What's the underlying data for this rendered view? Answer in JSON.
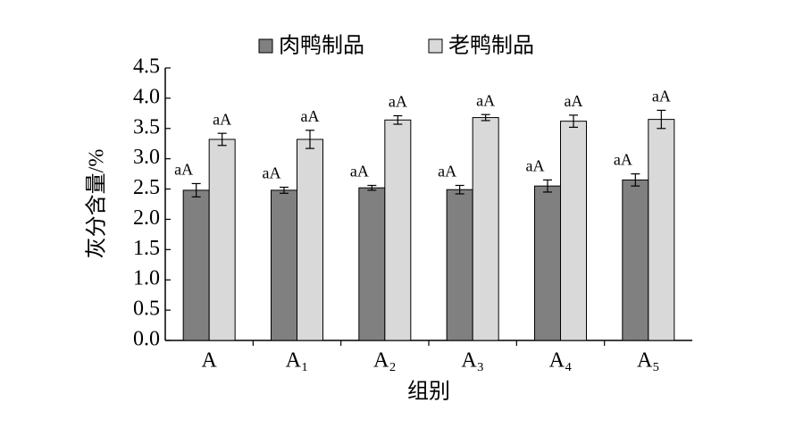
{
  "chart_data": {
    "type": "bar",
    "ylabel": "灰分含量/%",
    "xlabel": "组别",
    "categories": [
      "A",
      "A₁",
      "A₂",
      "A₃",
      "A₄",
      "A₅"
    ],
    "series": [
      {
        "name": "肉鸭制品",
        "color": "#808080",
        "values": [
          2.48,
          2.48,
          2.52,
          2.49,
          2.55,
          2.65
        ],
        "errors": [
          0.11,
          0.05,
          0.04,
          0.07,
          0.1,
          0.1
        ],
        "labels": [
          "aA",
          "aA",
          "aA",
          "aA",
          "aA",
          "aA"
        ]
      },
      {
        "name": "老鸭制品",
        "color": "#d9d9d9",
        "values": [
          3.32,
          3.32,
          3.64,
          3.68,
          3.62,
          3.65
        ],
        "errors": [
          0.1,
          0.15,
          0.07,
          0.05,
          0.1,
          0.15
        ],
        "labels": [
          "aA",
          "aA",
          "aA",
          "aA",
          "aA",
          "aA"
        ]
      }
    ],
    "ylim": [
      0,
      4.5
    ],
    "yticks": [
      {
        "value": 0,
        "label": "0.0"
      },
      0.5,
      {
        "value": 1,
        "label": "1.0"
      },
      1.5,
      {
        "value": 2,
        "label": "2.0"
      },
      2.5,
      {
        "value": 3,
        "label": "3.0"
      },
      3.5,
      {
        "value": 4,
        "label": "4.0"
      },
      4.5
    ],
    "grid": false
  }
}
